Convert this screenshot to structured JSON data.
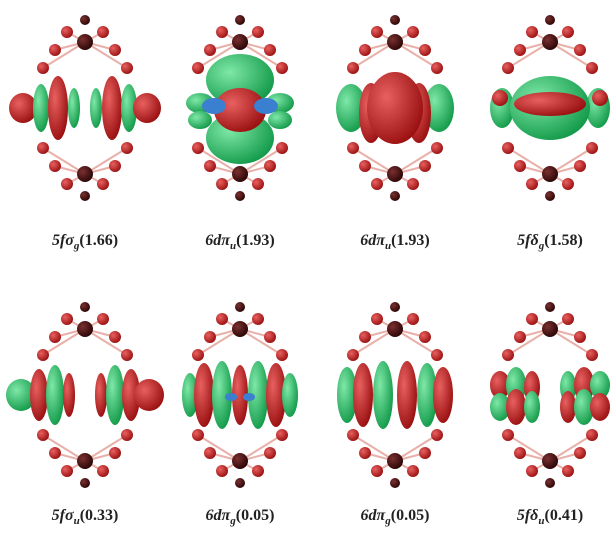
{
  "figure": {
    "panels": [
      {
        "orbital": "5fσ",
        "sub": "g",
        "occupation": "(1.66)"
      },
      {
        "orbital": "6dπ",
        "sub": "u",
        "occupation": "(1.93)"
      },
      {
        "orbital": "6dπ",
        "sub": "u",
        "occupation": "(1.93)"
      },
      {
        "orbital": "5fδ",
        "sub": "g",
        "occupation": "(1.58)"
      },
      {
        "orbital": "5fσ",
        "sub": "u",
        "occupation": "(0.33)"
      },
      {
        "orbital": "6dπ",
        "sub": "g",
        "occupation": "(0.05)"
      },
      {
        "orbital": "6dπ",
        "sub": "g",
        "occupation": "(0.05)"
      },
      {
        "orbital": "5fδ",
        "sub": "u",
        "occupation": "(0.41)"
      }
    ]
  }
}
